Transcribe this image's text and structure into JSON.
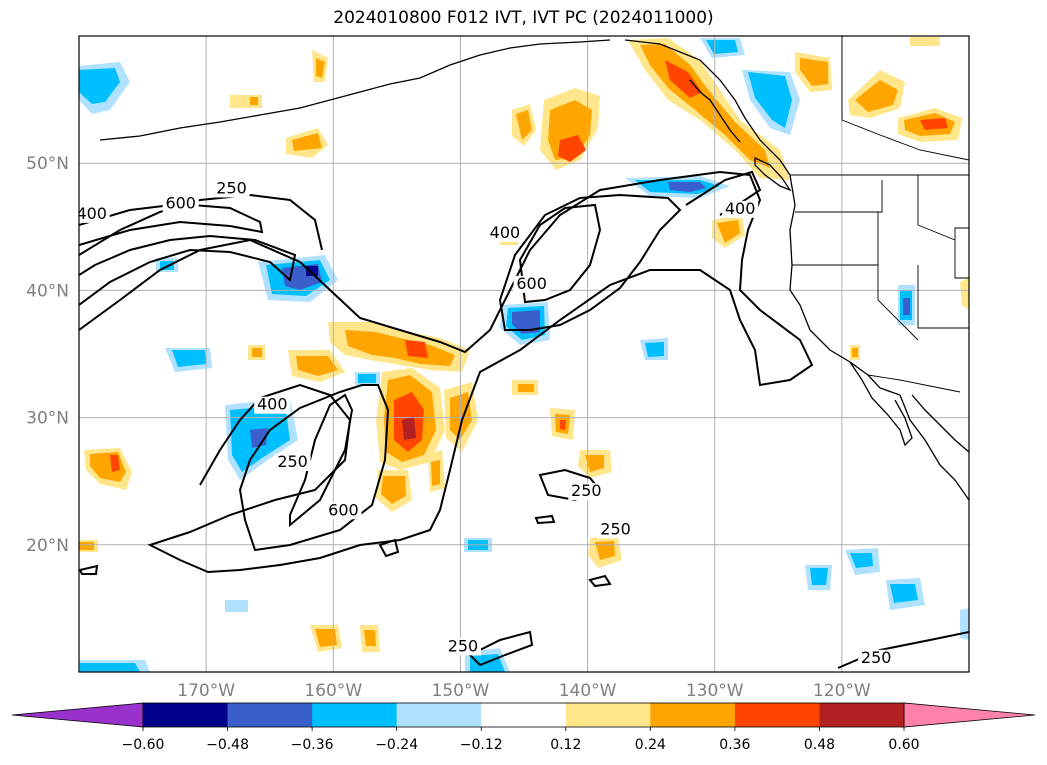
{
  "title": "2024010800 F012 IVT, IVT PC (2024011000)",
  "map": {
    "lon_range": [
      -180,
      -110
    ],
    "lat_range": [
      10,
      60
    ],
    "lat_ticks": [
      {
        "value": 20,
        "label": "20°N"
      },
      {
        "value": 30,
        "label": "30°N"
      },
      {
        "value": 40,
        "label": "40°N"
      },
      {
        "value": 50,
        "label": "50°N"
      }
    ],
    "lon_ticks": [
      {
        "value": -170,
        "label": "170°W"
      },
      {
        "value": -160,
        "label": "160°W"
      },
      {
        "value": -150,
        "label": "150°W"
      },
      {
        "value": -140,
        "label": "140°W"
      },
      {
        "value": -130,
        "label": "130°W"
      },
      {
        "value": -120,
        "label": "120°W"
      }
    ],
    "grid": true
  },
  "ivt_contours": {
    "levels": [
      "250",
      "400",
      "600"
    ],
    "labels": [
      {
        "text": "250",
        "lon": -168,
        "lat": 47.7
      },
      {
        "text": "600",
        "lon": -172,
        "lat": 46.5
      },
      {
        "text": "400",
        "lon": -179,
        "lat": 45.7
      },
      {
        "text": "400",
        "lon": -146.5,
        "lat": 44.2
      },
      {
        "text": "600",
        "lon": -144.4,
        "lat": 40.2
      },
      {
        "text": "400",
        "lon": -128,
        "lat": 46.1
      },
      {
        "text": "400",
        "lon": -164.8,
        "lat": 30.7
      },
      {
        "text": "250",
        "lon": -163.2,
        "lat": 26.2
      },
      {
        "text": "600",
        "lon": -159.2,
        "lat": 22.4
      },
      {
        "text": "250",
        "lon": -140.1,
        "lat": 23.9
      },
      {
        "text": "250",
        "lon": -137.8,
        "lat": 20.9
      },
      {
        "text": "250",
        "lon": -149.8,
        "lat": 11.7
      },
      {
        "text": "250",
        "lon": -117.3,
        "lat": 10.8
      }
    ]
  },
  "colorbar": {
    "ticks": [
      "−0.60",
      "−0.48",
      "−0.36",
      "−0.24",
      "−0.12",
      "0.12",
      "0.24",
      "0.36",
      "0.48",
      "0.60"
    ],
    "colors": [
      "#9932cc",
      "#00008b",
      "#3a5fcd",
      "#00bfff",
      "#b0e2ff",
      "#ffffff",
      "#ffe68a",
      "#ffa500",
      "#ff4500",
      "#b22222",
      "#ff82ab"
    ],
    "extend": "both"
  },
  "colors": {
    "frame": "#000000",
    "grid": "#b0b0b0",
    "contour": "#000000"
  }
}
